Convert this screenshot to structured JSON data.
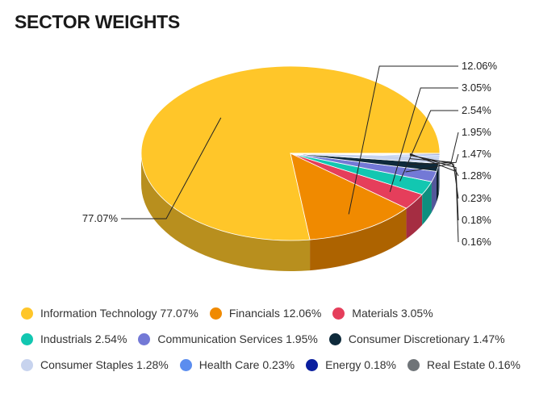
{
  "title": "SECTOR WEIGHTS",
  "chart_data": {
    "type": "pie",
    "style": "3d",
    "categories": [
      "Information Technology",
      "Financials",
      "Materials",
      "Industrials",
      "Communication Services",
      "Consumer Discretionary",
      "Consumer Staples",
      "Health Care",
      "Energy",
      "Real Estate"
    ],
    "values": [
      77.07,
      12.06,
      3.05,
      2.54,
      1.95,
      1.47,
      1.28,
      0.23,
      0.18,
      0.16
    ],
    "value_labels": [
      "77.07%",
      "12.06%",
      "3.05%",
      "2.54%",
      "1.95%",
      "1.47%",
      "1.28%",
      "0.23%",
      "0.18%",
      "0.16%"
    ],
    "legend_labels": [
      "Information Technology 77.07%",
      "Financials 12.06%",
      "Materials 3.05%",
      "Industrials 2.54%",
      "Communication Services 1.95%",
      "Consumer Discretionary 1.47%",
      "Consumer Staples 1.28%",
      "Health Care 0.23%",
      "Energy 0.18%",
      "Real Estate 0.16%"
    ],
    "colors": [
      "#FFC629",
      "#F08A00",
      "#E53E5B",
      "#12C7B1",
      "#7379D6",
      "#0E2A3B",
      "#C7D3EE",
      "#5B8DEF",
      "#0A1E9E",
      "#6F7478"
    ],
    "legend_placement": "bottom"
  }
}
